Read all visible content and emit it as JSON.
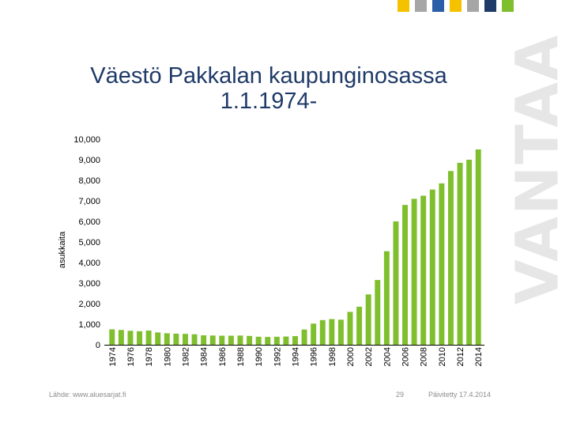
{
  "header": {
    "title_line1": "Väestö Pakkalan kaupunginosassa",
    "title_line2": "1.1.1974-",
    "brand": "VANTAA",
    "squares": [
      "#f5c200",
      "#a6a6a6",
      "#2a5fa8",
      "#f5c200",
      "#a6a6a6",
      "#1f3a68",
      "#7fbf2e"
    ]
  },
  "footer": {
    "source": "Lähde: www.aluesarjat.fi",
    "page": "29",
    "updated": "Päivitetty 17.4.2014"
  },
  "chart_data": {
    "type": "bar",
    "ylabel": "asukkaita",
    "ylim": [
      0,
      10000
    ],
    "yticks": [
      "0",
      "1,000",
      "2,000",
      "3,000",
      "4,000",
      "5,000",
      "6,000",
      "7,000",
      "8,000",
      "9,000",
      "10,000"
    ],
    "bar_color": "#7fbf2e",
    "categories": [
      "1974",
      "1975",
      "1976",
      "1977",
      "1978",
      "1979",
      "1980",
      "1981",
      "1982",
      "1983",
      "1984",
      "1985",
      "1986",
      "1987",
      "1988",
      "1989",
      "1990",
      "1991",
      "1992",
      "1993",
      "1994",
      "1995",
      "1996",
      "1997",
      "1998",
      "1999",
      "2000",
      "2001",
      "2002",
      "2003",
      "2004",
      "2005",
      "2006",
      "2007",
      "2008",
      "2009",
      "2010",
      "2011",
      "2012",
      "2013",
      "2014"
    ],
    "tick_labels": [
      "1974",
      "1976",
      "1978",
      "1980",
      "1982",
      "1984",
      "1986",
      "1988",
      "1990",
      "1992",
      "1994",
      "1996",
      "1998",
      "2000",
      "2002",
      "2004",
      "2006",
      "2008",
      "2010",
      "2012",
      "2014"
    ],
    "values": [
      750,
      720,
      680,
      660,
      690,
      600,
      560,
      540,
      530,
      510,
      460,
      450,
      440,
      440,
      450,
      430,
      390,
      380,
      390,
      400,
      420,
      740,
      1030,
      1200,
      1250,
      1220,
      1600,
      1850,
      2450,
      3150,
      4550,
      6000,
      6800,
      7100,
      7250,
      7550,
      7850,
      8450,
      8850,
      9000,
      9500
    ]
  }
}
